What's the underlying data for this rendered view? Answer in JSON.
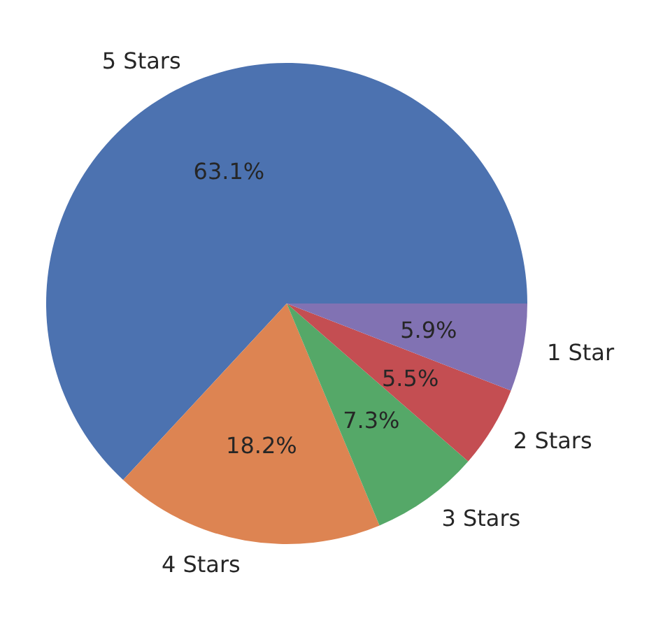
{
  "chart_data": {
    "type": "pie",
    "categories": [
      "5 Stars",
      "4 Stars",
      "3 Stars",
      "2 Stars",
      "1 Star"
    ],
    "values": [
      63.1,
      18.2,
      7.3,
      5.5,
      5.9
    ],
    "colors": [
      "#4c72b0",
      "#dd8452",
      "#55a868",
      "#c44e52",
      "#8172b3"
    ],
    "value_labels": [
      "63.1%",
      "18.2%",
      "7.3%",
      "5.5%",
      "5.9%"
    ]
  }
}
